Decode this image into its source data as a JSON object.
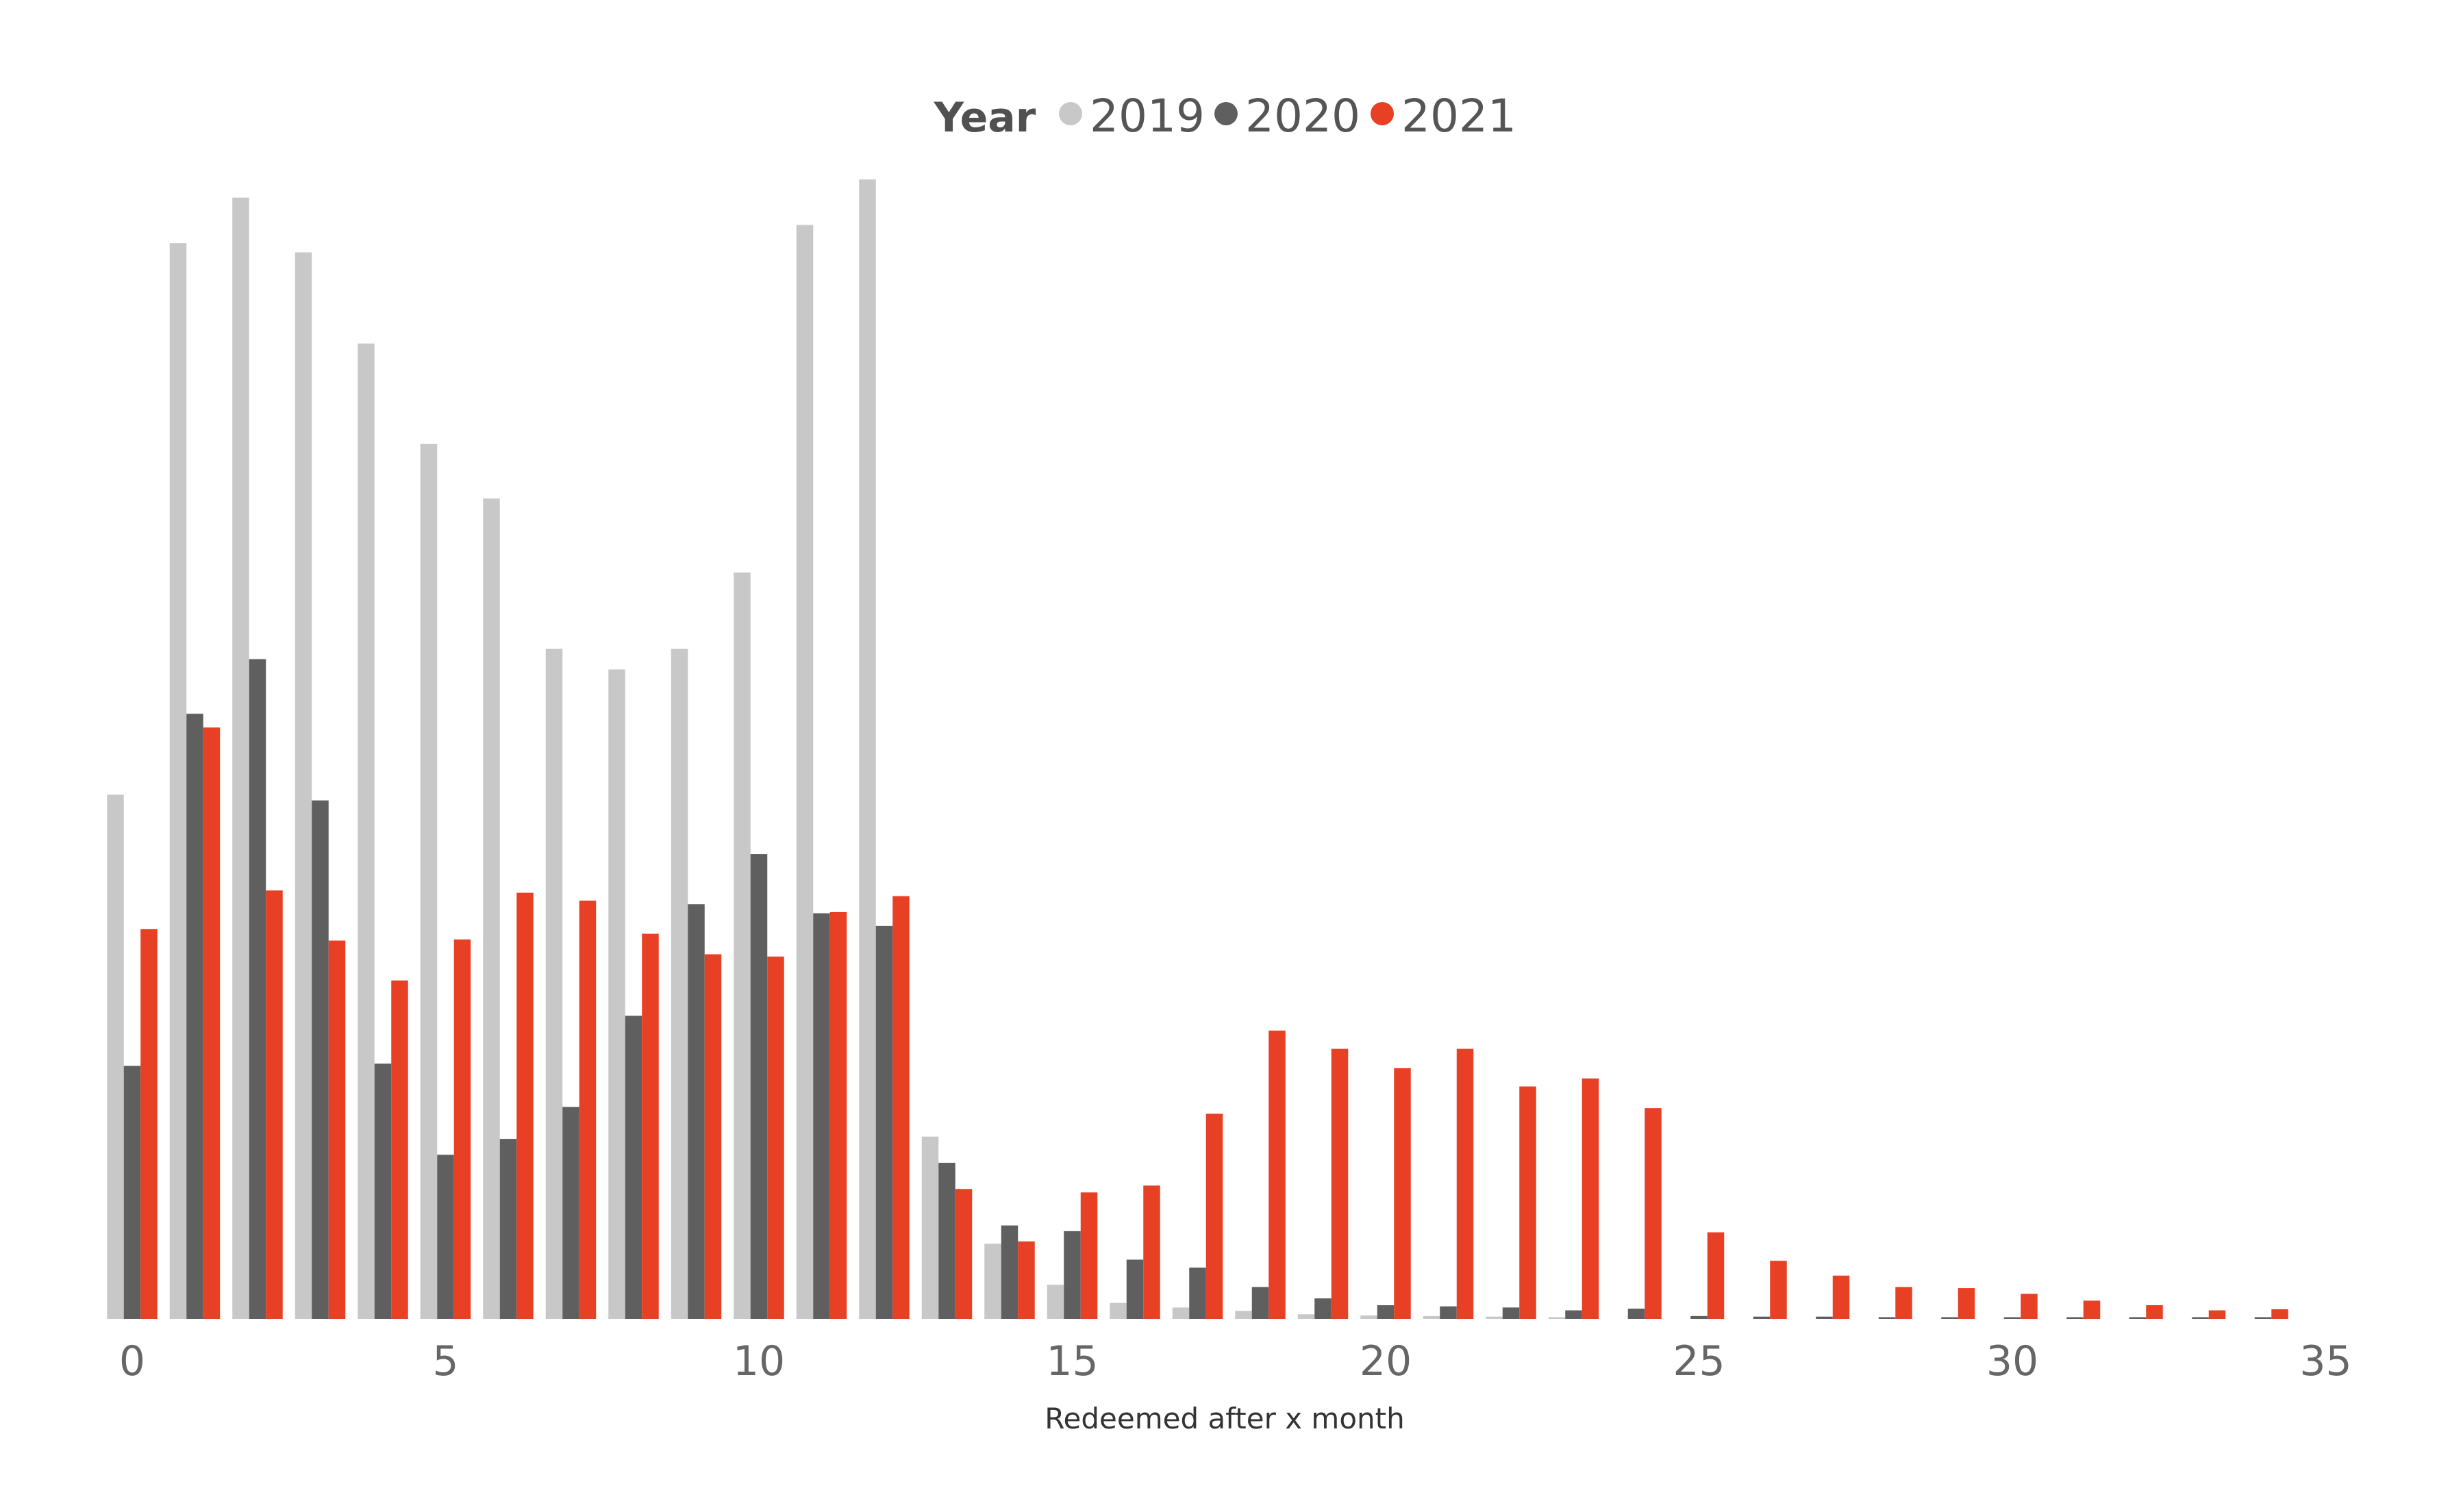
{
  "chart_data": {
    "type": "bar",
    "legend": {
      "title": "Year",
      "position": "top-center",
      "entries": [
        "2019",
        "2020",
        "2021"
      ]
    },
    "xlabel": "Redeemed after x month",
    "ylabel": "",
    "xlim": [
      0,
      35
    ],
    "ylim": [
      0,
      100
    ],
    "x_ticks": [
      "0",
      "5",
      "10",
      "15",
      "20",
      "25",
      "30",
      "35"
    ],
    "y_axis_visible": false,
    "grid": false,
    "x": [
      0,
      1,
      2,
      3,
      4,
      5,
      6,
      7,
      8,
      9,
      10,
      11,
      12,
      13,
      14,
      15,
      16,
      17,
      18,
      19,
      20,
      21,
      22,
      23,
      24,
      25,
      26,
      27,
      28,
      29,
      30,
      31,
      32,
      33,
      34
    ],
    "series": [
      {
        "name": "2019",
        "color": "#c8c8c8",
        "values": [
          46,
          94.4,
          98.4,
          93.6,
          85.6,
          76.8,
          72,
          58.8,
          57,
          58.8,
          65.5,
          96,
          100,
          16,
          6.6,
          3,
          1.4,
          1,
          0.7,
          0.4,
          0.3,
          0.25,
          0.2,
          0.15,
          0,
          0,
          0,
          0,
          0,
          0,
          0,
          0,
          0,
          0,
          0
        ]
      },
      {
        "name": "2020",
        "color": "#5f5f5f",
        "values": [
          22.2,
          53.1,
          57.9,
          45.5,
          22.4,
          14.4,
          15.8,
          18.6,
          26.6,
          36.4,
          40.8,
          35.6,
          34.5,
          13.7,
          8.2,
          7.7,
          5.2,
          4.5,
          2.8,
          1.8,
          1.2,
          1.1,
          1,
          0.75,
          0.9,
          0.25,
          0.2,
          0.2,
          0.15,
          0.15,
          0.15,
          0.15,
          0.15,
          0.15,
          0.15
        ]
      },
      {
        "name": "2021",
        "color": "#e84025",
        "values": [
          34.2,
          51.9,
          37.6,
          33.2,
          29.7,
          33.3,
          37.4,
          36.7,
          33.8,
          32,
          31.8,
          35.7,
          37.1,
          11.4,
          6.8,
          11.1,
          11.7,
          18,
          25.3,
          23.7,
          22,
          23.7,
          20.4,
          21.1,
          18.5,
          7.6,
          5.1,
          3.8,
          2.8,
          2.7,
          2.2,
          1.6,
          1.2,
          0.75,
          0.85
        ]
      }
    ]
  }
}
